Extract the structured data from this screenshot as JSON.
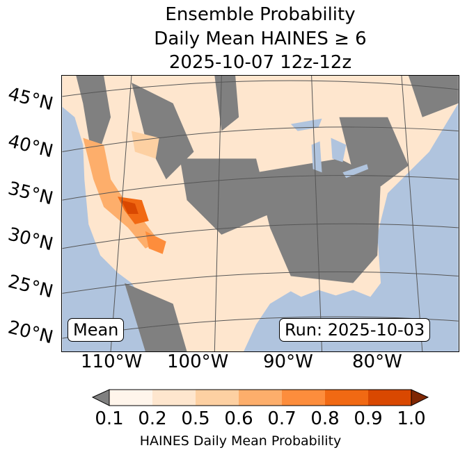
{
  "title": {
    "line1": "Ensemble Probability",
    "line2": "Daily Mean HAINES ≥ 6",
    "line3": "2025-10-07 12z-12z"
  },
  "map": {
    "lat_labels": [
      "45°N",
      "40°N",
      "35°N",
      "30°N",
      "25°N",
      "20°N"
    ],
    "lon_labels": [
      "110°W",
      "100°W",
      "90°W",
      "80°W"
    ],
    "mean_label": "Mean",
    "run_label": "Run: 2025-10-03",
    "colors": {
      "ocean": "#b0c4de",
      "land_below": "#808080"
    }
  },
  "colorbar": {
    "ticks": [
      "0.1",
      "0.2",
      "0.5",
      "0.6",
      "0.7",
      "0.8",
      "0.9",
      "1.0"
    ],
    "colors": [
      "#fff5eb",
      "#fee6ce",
      "#fdd0a2",
      "#fdae6b",
      "#fd8d3c",
      "#f16913",
      "#d94801"
    ],
    "under_color": "#808080",
    "over_color": "#7f2704",
    "label": "HAINES Daily Mean Probability"
  }
}
